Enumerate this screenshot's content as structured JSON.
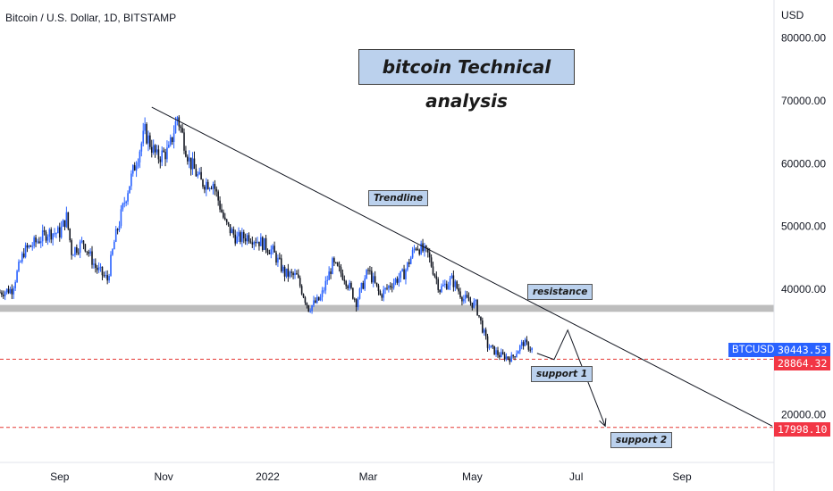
{
  "header": {
    "symbol_title": "Bitcoin / U.S. Dollar, 1D, BITSTAMP"
  },
  "main_title": "bitcoin Technical analysis",
  "annotations": {
    "trendline": "Trendline",
    "resistance": "resistance",
    "support1": "support 1",
    "support2": "support 2"
  },
  "price_axis": {
    "unit": "USD",
    "ticks": [
      "80000.00",
      "70000.00",
      "60000.00",
      "50000.00",
      "40000.00",
      "20000.00"
    ]
  },
  "time_axis": {
    "ticks": [
      "Sep",
      "Nov",
      "2022",
      "Mar",
      "May",
      "Jul",
      "Sep"
    ]
  },
  "tags": {
    "ticker": "BTCUSD",
    "last_price": "30443.53",
    "support1_price": "28864.32",
    "support2_price": "17998.10"
  },
  "colors": {
    "up": "#2962ff",
    "down": "#131722",
    "support_line": "#e53935",
    "resistance_band": "#bdbdbd",
    "label_bg": "#bbd1ed",
    "tag_blue": "#2962ff",
    "tag_red": "#f23645"
  },
  "chart_data": {
    "type": "candlestick",
    "title": "Bitcoin / U.S. Dollar, 1D, BITSTAMP",
    "ylabel": "USD",
    "ylim": [
      13500,
      83000
    ],
    "x_range": [
      "2021-07-28",
      "2022-10-25"
    ],
    "price_series_weekly": [
      {
        "d": "2021-07-28",
        "c": 39500
      },
      {
        "d": "2021-08-04",
        "c": 40000
      },
      {
        "d": "2021-08-11",
        "c": 46000
      },
      {
        "d": "2021-08-18",
        "c": 47500
      },
      {
        "d": "2021-08-25",
        "c": 49000
      },
      {
        "d": "2021-09-01",
        "c": 49000
      },
      {
        "d": "2021-09-05",
        "c": 51500
      },
      {
        "d": "2021-09-08",
        "c": 46000
      },
      {
        "d": "2021-09-15",
        "c": 47500
      },
      {
        "d": "2021-09-22",
        "c": 43500
      },
      {
        "d": "2021-09-29",
        "c": 41500
      },
      {
        "d": "2021-10-03",
        "c": 47500
      },
      {
        "d": "2021-10-10",
        "c": 55000
      },
      {
        "d": "2021-10-17",
        "c": 61500
      },
      {
        "d": "2021-10-21",
        "c": 65000
      },
      {
        "d": "2021-10-28",
        "c": 61000
      },
      {
        "d": "2021-11-04",
        "c": 62000
      },
      {
        "d": "2021-11-09",
        "c": 67500
      },
      {
        "d": "2021-11-16",
        "c": 60500
      },
      {
        "d": "2021-11-23",
        "c": 57000
      },
      {
        "d": "2021-11-30",
        "c": 57000
      },
      {
        "d": "2021-12-07",
        "c": 50500
      },
      {
        "d": "2021-12-14",
        "c": 48000
      },
      {
        "d": "2021-12-21",
        "c": 48500
      },
      {
        "d": "2021-12-28",
        "c": 47500
      },
      {
        "d": "2022-01-04",
        "c": 46000
      },
      {
        "d": "2022-01-11",
        "c": 42500
      },
      {
        "d": "2022-01-18",
        "c": 42000
      },
      {
        "d": "2022-01-25",
        "c": 37000
      },
      {
        "d": "2022-02-01",
        "c": 38500
      },
      {
        "d": "2022-02-08",
        "c": 44000
      },
      {
        "d": "2022-02-15",
        "c": 42000
      },
      {
        "d": "2022-02-22",
        "c": 38000
      },
      {
        "d": "2022-03-01",
        "c": 43000
      },
      {
        "d": "2022-03-08",
        "c": 39000
      },
      {
        "d": "2022-03-15",
        "c": 41000
      },
      {
        "d": "2022-03-22",
        "c": 42500
      },
      {
        "d": "2022-03-29",
        "c": 47000
      },
      {
        "d": "2022-04-05",
        "c": 45500
      },
      {
        "d": "2022-04-12",
        "c": 40000
      },
      {
        "d": "2022-04-19",
        "c": 41500
      },
      {
        "d": "2022-04-26",
        "c": 38500
      },
      {
        "d": "2022-05-03",
        "c": 37500
      },
      {
        "d": "2022-05-10",
        "c": 31000
      },
      {
        "d": "2022-05-17",
        "c": 29500
      },
      {
        "d": "2022-05-24",
        "c": 29000
      },
      {
        "d": "2022-05-31",
        "c": 31500
      },
      {
        "d": "2022-06-05",
        "c": 30443.53
      }
    ],
    "levels": {
      "resistance_band": [
        36400,
        37500
      ],
      "support1": 28864.32,
      "support2": 17998.1,
      "last_price": 30443.53
    },
    "trendline": [
      [
        "2021-10-25",
        69000
      ],
      [
        "2022-10-24",
        18200
      ]
    ],
    "projection_path": [
      [
        "2022-06-08",
        29800
      ],
      [
        "2022-06-18",
        28800
      ],
      [
        "2022-06-26",
        33500
      ],
      [
        "2022-07-18",
        18200
      ]
    ],
    "x_ticks": [
      "Sep",
      "Nov",
      "2022",
      "Mar",
      "May",
      "Jul",
      "Sep"
    ],
    "y_ticks": [
      "80000.00",
      "70000.00",
      "60000.00",
      "50000.00",
      "40000.00",
      "20000.00"
    ]
  }
}
